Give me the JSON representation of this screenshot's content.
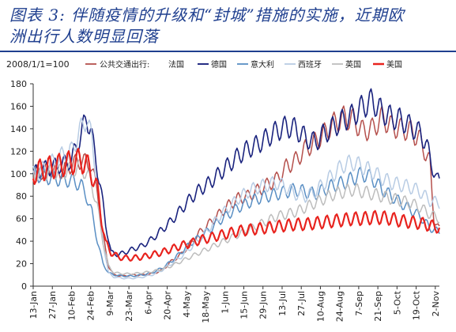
{
  "title": {
    "line1": "图表 3: 伴随疫情的升级和“封城”措施的实施，近期欧",
    "line2": "洲出行人数明显回落"
  },
  "chart_data": {
    "type": "line",
    "base_note": "2008/1/1=100",
    "legend_prefix": "公共交通出行:",
    "ylim": [
      0,
      180
    ],
    "yticks": [
      0,
      20,
      40,
      60,
      80,
      100,
      120,
      140,
      160,
      180
    ],
    "x_ticks": [
      "13-Jan",
      "27-Jan",
      "10-Feb",
      "24-Feb",
      "9-Mar",
      "23-Mar",
      "6-Apr",
      "20-Apr",
      "4-May",
      "18-May",
      "1-Jun",
      "15-Jun",
      "29-Jun",
      "13-Jul",
      "27-Jul",
      "10-Aug",
      "24-Aug",
      "7-Sep",
      "21-Sep",
      "5-Oct",
      "19-Oct",
      "2-Nov"
    ],
    "x_start_day": 13,
    "x_end_day": 310,
    "series": [
      {
        "name": "法国",
        "color": "#b5504c",
        "width": 1.5,
        "points": [
          [
            13,
            100
          ],
          [
            20,
            102
          ],
          [
            27,
            104
          ],
          [
            34,
            102
          ],
          [
            41,
            108
          ],
          [
            48,
            112
          ],
          [
            55,
            108
          ],
          [
            60,
            85
          ],
          [
            64,
            45
          ],
          [
            68,
            18
          ],
          [
            72,
            10
          ],
          [
            79,
            9
          ],
          [
            86,
            10
          ],
          [
            93,
            10
          ],
          [
            100,
            11
          ],
          [
            107,
            14
          ],
          [
            114,
            22
          ],
          [
            121,
            28
          ],
          [
            128,
            38
          ],
          [
            135,
            48
          ],
          [
            142,
            56
          ],
          [
            149,
            64
          ],
          [
            156,
            72
          ],
          [
            163,
            78
          ],
          [
            170,
            80
          ],
          [
            177,
            85
          ],
          [
            184,
            90
          ],
          [
            191,
            95
          ],
          [
            198,
            106
          ],
          [
            205,
            112
          ],
          [
            212,
            122
          ],
          [
            219,
            128
          ],
          [
            226,
            136
          ],
          [
            233,
            145
          ],
          [
            240,
            150
          ],
          [
            247,
            148
          ],
          [
            254,
            138
          ],
          [
            261,
            140
          ],
          [
            268,
            150
          ],
          [
            275,
            142
          ],
          [
            282,
            140
          ],
          [
            289,
            138
          ],
          [
            296,
            130
          ],
          [
            300,
            118
          ],
          [
            303,
            110
          ],
          [
            306,
            60
          ],
          [
            310,
            50
          ]
        ]
      },
      {
        "name": "德国",
        "color": "#1a237e",
        "width": 1.6,
        "points": [
          [
            13,
            100
          ],
          [
            20,
            104
          ],
          [
            27,
            106
          ],
          [
            34,
            108
          ],
          [
            41,
            112
          ],
          [
            48,
            135
          ],
          [
            52,
            150
          ],
          [
            55,
            140
          ],
          [
            58,
            118
          ],
          [
            62,
            90
          ],
          [
            66,
            55
          ],
          [
            70,
            30
          ],
          [
            75,
            28
          ],
          [
            80,
            30
          ],
          [
            86,
            33
          ],
          [
            93,
            36
          ],
          [
            100,
            42
          ],
          [
            107,
            50
          ],
          [
            114,
            58
          ],
          [
            121,
            68
          ],
          [
            128,
            78
          ],
          [
            135,
            86
          ],
          [
            142,
            92
          ],
          [
            149,
            100
          ],
          [
            156,
            108
          ],
          [
            163,
            116
          ],
          [
            170,
            122
          ],
          [
            177,
            126
          ],
          [
            184,
            132
          ],
          [
            191,
            138
          ],
          [
            198,
            142
          ],
          [
            205,
            140
          ],
          [
            212,
            132
          ],
          [
            219,
            128
          ],
          [
            226,
            136
          ],
          [
            233,
            142
          ],
          [
            240,
            148
          ],
          [
            247,
            152
          ],
          [
            254,
            160
          ],
          [
            261,
            165
          ],
          [
            268,
            155
          ],
          [
            275,
            150
          ],
          [
            282,
            148
          ],
          [
            289,
            142
          ],
          [
            296,
            136
          ],
          [
            300,
            128
          ],
          [
            304,
            110
          ],
          [
            308,
            95
          ],
          [
            310,
            93
          ]
        ]
      },
      {
        "name": "意大利",
        "color": "#5a8fc4",
        "width": 1.5,
        "points": [
          [
            13,
            100
          ],
          [
            20,
            98
          ],
          [
            27,
            96
          ],
          [
            34,
            95
          ],
          [
            41,
            94
          ],
          [
            48,
            90
          ],
          [
            52,
            80
          ],
          [
            56,
            65
          ],
          [
            60,
            40
          ],
          [
            64,
            20
          ],
          [
            68,
            12
          ],
          [
            72,
            10
          ],
          [
            79,
            9
          ],
          [
            86,
            9
          ],
          [
            93,
            10
          ],
          [
            100,
            12
          ],
          [
            107,
            16
          ],
          [
            114,
            22
          ],
          [
            121,
            30
          ],
          [
            128,
            38
          ],
          [
            135,
            44
          ],
          [
            142,
            50
          ],
          [
            149,
            58
          ],
          [
            156,
            64
          ],
          [
            163,
            70
          ],
          [
            170,
            74
          ],
          [
            177,
            78
          ],
          [
            184,
            80
          ],
          [
            191,
            82
          ],
          [
            198,
            84
          ],
          [
            205,
            86
          ],
          [
            212,
            84
          ],
          [
            219,
            82
          ],
          [
            226,
            86
          ],
          [
            233,
            90
          ],
          [
            240,
            92
          ],
          [
            247,
            96
          ],
          [
            254,
            100
          ],
          [
            261,
            96
          ],
          [
            268,
            86
          ],
          [
            275,
            80
          ],
          [
            282,
            74
          ],
          [
            289,
            68
          ],
          [
            296,
            62
          ],
          [
            303,
            52
          ],
          [
            310,
            48
          ]
        ]
      },
      {
        "name": "西班牙",
        "color": "#b8cce4",
        "width": 1.5,
        "points": [
          [
            13,
            100
          ],
          [
            20,
            104
          ],
          [
            27,
            110
          ],
          [
            34,
            116
          ],
          [
            41,
            120
          ],
          [
            48,
            140
          ],
          [
            52,
            150
          ],
          [
            56,
            130
          ],
          [
            60,
            90
          ],
          [
            64,
            40
          ],
          [
            68,
            12
          ],
          [
            72,
            8
          ],
          [
            79,
            7
          ],
          [
            86,
            7
          ],
          [
            93,
            8
          ],
          [
            100,
            10
          ],
          [
            107,
            14
          ],
          [
            114,
            20
          ],
          [
            121,
            26
          ],
          [
            128,
            34
          ],
          [
            135,
            42
          ],
          [
            142,
            52
          ],
          [
            149,
            62
          ],
          [
            156,
            70
          ],
          [
            163,
            78
          ],
          [
            170,
            84
          ],
          [
            177,
            88
          ],
          [
            184,
            90
          ],
          [
            191,
            92
          ],
          [
            198,
            88
          ],
          [
            205,
            82
          ],
          [
            212,
            80
          ],
          [
            219,
            84
          ],
          [
            226,
            92
          ],
          [
            233,
            100
          ],
          [
            240,
            108
          ],
          [
            247,
            110
          ],
          [
            254,
            106
          ],
          [
            261,
            102
          ],
          [
            268,
            96
          ],
          [
            275,
            92
          ],
          [
            282,
            90
          ],
          [
            289,
            88
          ],
          [
            296,
            84
          ],
          [
            303,
            76
          ],
          [
            310,
            74
          ]
        ]
      },
      {
        "name": "英国",
        "color": "#bdbdbd",
        "width": 1.5,
        "points": [
          [
            13,
            100
          ],
          [
            20,
            100
          ],
          [
            27,
            102
          ],
          [
            34,
            102
          ],
          [
            41,
            104
          ],
          [
            48,
            106
          ],
          [
            52,
            100
          ],
          [
            56,
            90
          ],
          [
            60,
            70
          ],
          [
            64,
            40
          ],
          [
            68,
            18
          ],
          [
            72,
            12
          ],
          [
            79,
            11
          ],
          [
            86,
            11
          ],
          [
            93,
            12
          ],
          [
            100,
            13
          ],
          [
            107,
            15
          ],
          [
            114,
            18
          ],
          [
            121,
            22
          ],
          [
            128,
            26
          ],
          [
            135,
            30
          ],
          [
            142,
            34
          ],
          [
            149,
            38
          ],
          [
            156,
            42
          ],
          [
            163,
            46
          ],
          [
            170,
            50
          ],
          [
            177,
            54
          ],
          [
            184,
            58
          ],
          [
            191,
            62
          ],
          [
            198,
            64
          ],
          [
            205,
            66
          ],
          [
            212,
            70
          ],
          [
            219,
            74
          ],
          [
            226,
            78
          ],
          [
            233,
            82
          ],
          [
            240,
            84
          ],
          [
            247,
            86
          ],
          [
            254,
            84
          ],
          [
            261,
            82
          ],
          [
            268,
            80
          ],
          [
            275,
            78
          ],
          [
            282,
            76
          ],
          [
            289,
            74
          ],
          [
            296,
            70
          ],
          [
            303,
            64
          ],
          [
            310,
            60
          ]
        ]
      },
      {
        "name": "美国",
        "color": "#e8231e",
        "width": 2.2,
        "points": [
          [
            13,
            100
          ],
          [
            20,
            104
          ],
          [
            27,
            106
          ],
          [
            34,
            108
          ],
          [
            41,
            110
          ],
          [
            48,
            112
          ],
          [
            52,
            108
          ],
          [
            56,
            100
          ],
          [
            60,
            85
          ],
          [
            63,
            60
          ],
          [
            66,
            38
          ],
          [
            70,
            30
          ],
          [
            75,
            26
          ],
          [
            80,
            25
          ],
          [
            86,
            25
          ],
          [
            93,
            26
          ],
          [
            100,
            28
          ],
          [
            107,
            30
          ],
          [
            114,
            33
          ],
          [
            121,
            36
          ],
          [
            128,
            38
          ],
          [
            135,
            41
          ],
          [
            142,
            43
          ],
          [
            149,
            45
          ],
          [
            156,
            47
          ],
          [
            163,
            49
          ],
          [
            170,
            50
          ],
          [
            177,
            51
          ],
          [
            184,
            52
          ],
          [
            191,
            53
          ],
          [
            198,
            54
          ],
          [
            205,
            55
          ],
          [
            212,
            55
          ],
          [
            219,
            56
          ],
          [
            226,
            57
          ],
          [
            233,
            58
          ],
          [
            240,
            59
          ],
          [
            247,
            60
          ],
          [
            254,
            60
          ],
          [
            261,
            61
          ],
          [
            268,
            61
          ],
          [
            275,
            60
          ],
          [
            282,
            58
          ],
          [
            289,
            57
          ],
          [
            296,
            56
          ],
          [
            303,
            54
          ],
          [
            310,
            52
          ]
        ]
      }
    ]
  }
}
